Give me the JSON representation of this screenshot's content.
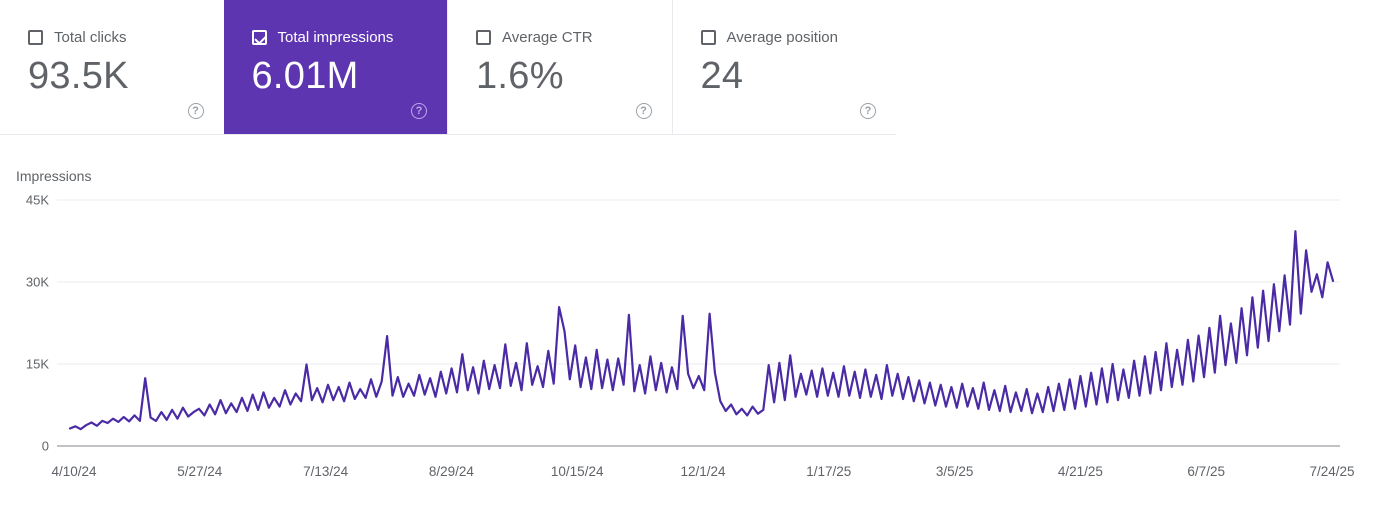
{
  "cards": [
    {
      "label": "Total clicks",
      "value": "93.5K",
      "checked": false,
      "selected": false
    },
    {
      "label": "Total impressions",
      "value": "6.01M",
      "checked": true,
      "selected": true
    },
    {
      "label": "Average CTR",
      "value": "1.6%",
      "checked": false,
      "selected": false
    },
    {
      "label": "Average position",
      "value": "24",
      "checked": false,
      "selected": false
    }
  ],
  "icons": {
    "help_glyph": "?"
  },
  "colors": {
    "selected_card_bg": "#5e35b1",
    "series_line": "#4a2ba5",
    "text_gray": "#5f6368",
    "gridline": "#e9ebee",
    "axis_baseline": "#80868b"
  },
  "chart": {
    "title": "Impressions"
  },
  "chart_data": {
    "type": "line",
    "title": "Impressions",
    "series_name": "Total impressions",
    "color": "#4a2ba5",
    "grid": "horizontal",
    "legend": "none",
    "date_start": "4/10/24",
    "date_end": "7/24/25",
    "sample_interval_days": 2,
    "x_tick_labels": [
      "4/10/24",
      "5/27/24",
      "7/13/24",
      "8/29/24",
      "10/15/24",
      "12/1/24",
      "1/17/25",
      "3/5/25",
      "4/21/25",
      "6/7/25",
      "7/24/25"
    ],
    "y_tick_labels": [
      "0",
      "15K",
      "30K",
      "45K"
    ],
    "ylim": [
      0,
      45
    ],
    "unit": "impressions, thousands",
    "values_thousands": [
      3.2,
      3.6,
      3.1,
      3.8,
      4.3,
      3.7,
      4.6,
      4.2,
      5.0,
      4.4,
      5.3,
      4.5,
      5.6,
      4.6,
      12.4,
      5.2,
      4.6,
      6.2,
      4.8,
      6.6,
      5.0,
      7.0,
      5.4,
      6.2,
      6.8,
      5.6,
      7.6,
      5.8,
      8.4,
      6.0,
      7.8,
      6.2,
      8.8,
      6.4,
      9.4,
      6.6,
      9.8,
      7.0,
      8.8,
      7.2,
      10.2,
      7.6,
      9.6,
      8.2,
      14.9,
      8.4,
      10.6,
      8.0,
      11.2,
      8.4,
      10.8,
      8.2,
      11.6,
      8.6,
      10.4,
      8.8,
      12.2,
      9.0,
      11.8,
      20.1,
      9.2,
      12.6,
      9.0,
      11.4,
      9.2,
      13.0,
      9.4,
      12.4,
      9.0,
      13.6,
      9.6,
      14.2,
      9.8,
      16.8,
      10.2,
      14.4,
      9.6,
      15.6,
      10.4,
      14.8,
      10.6,
      18.6,
      11.0,
      15.2,
      10.2,
      18.8,
      11.2,
      14.6,
      10.8,
      17.4,
      11.4,
      25.4,
      21.0,
      12.2,
      18.4,
      10.8,
      16.2,
      10.4,
      17.6,
      10.6,
      15.8,
      10.2,
      16.0,
      11.2,
      24.0,
      10.0,
      14.8,
      9.6,
      16.4,
      10.2,
      15.2,
      9.8,
      14.4,
      10.4,
      23.8,
      13.2,
      10.6,
      12.8,
      10.2,
      24.2,
      13.4,
      8.2,
      6.4,
      7.6,
      5.8,
      6.8,
      5.6,
      7.2,
      5.9,
      6.6,
      14.8,
      8.0,
      15.2,
      8.4,
      16.6,
      9.0,
      13.2,
      9.4,
      13.8,
      9.0,
      14.2,
      9.2,
      13.4,
      9.0,
      14.6,
      9.2,
      13.6,
      8.8,
      14.0,
      9.0,
      13.0,
      8.6,
      14.8,
      9.2,
      13.2,
      8.6,
      12.6,
      8.2,
      12.0,
      7.8,
      11.6,
      7.4,
      11.2,
      7.2,
      10.8,
      7.0,
      11.4,
      7.2,
      10.6,
      6.8,
      11.6,
      6.6,
      10.2,
      6.4,
      11.0,
      6.2,
      9.8,
      6.4,
      10.4,
      6.0,
      9.6,
      6.2,
      10.8,
      6.4,
      11.4,
      6.6,
      12.2,
      6.8,
      12.8,
      7.2,
      13.4,
      7.6,
      14.2,
      8.0,
      15.0,
      8.4,
      14.0,
      8.8,
      15.6,
      9.2,
      16.4,
      9.6,
      17.2,
      10.2,
      18.8,
      10.8,
      17.6,
      11.2,
      19.4,
      11.8,
      20.2,
      12.6,
      21.6,
      13.4,
      23.8,
      14.8,
      22.4,
      15.2,
      25.2,
      16.6,
      27.2,
      18.0,
      28.4,
      19.2,
      29.6,
      21.0,
      31.2,
      22.2,
      39.3,
      24.2,
      35.8,
      28.2,
      31.4,
      27.2,
      33.6,
      30.2
    ]
  }
}
